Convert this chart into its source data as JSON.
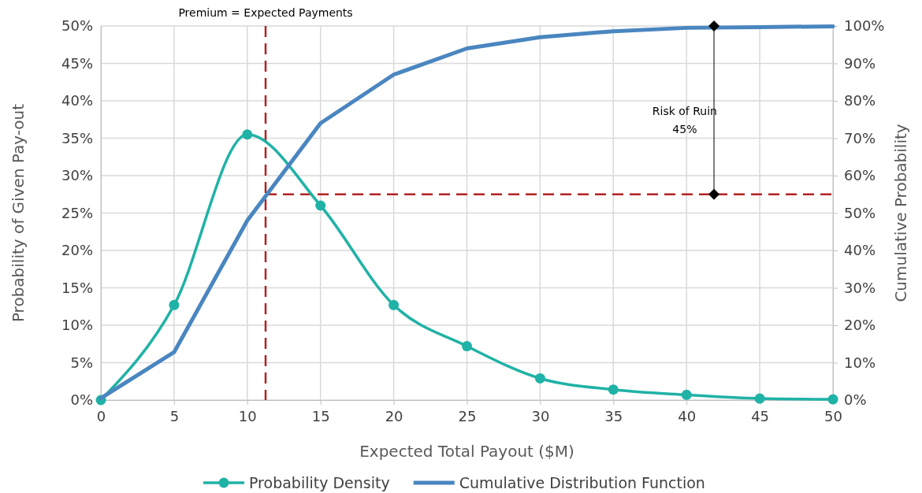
{
  "chart_data": {
    "type": "line",
    "xlabel": "Expected Total Payout ($M)",
    "ylabel": "Probability of Given Pay-out",
    "y2label": "Cumulative Probability",
    "x": [
      0,
      5,
      10,
      15,
      20,
      25,
      30,
      35,
      40,
      45,
      50
    ],
    "xlim": [
      0,
      50
    ],
    "xticks": [
      0,
      5,
      10,
      15,
      20,
      25,
      30,
      35,
      40,
      45,
      50
    ],
    "ylim": [
      0,
      50
    ],
    "yticks": [
      {
        "value": 0,
        "label": "0%"
      },
      {
        "value": 5,
        "label": "5%"
      },
      {
        "value": 10,
        "label": "10%"
      },
      {
        "value": 15,
        "label": "15%"
      },
      {
        "value": 20,
        "label": "20%"
      },
      {
        "value": 25,
        "label": "25%"
      },
      {
        "value": 30,
        "label": "30%"
      },
      {
        "value": 35,
        "label": "35%"
      },
      {
        "value": 40,
        "label": "40%"
      },
      {
        "value": 45,
        "label": "45%"
      },
      {
        "value": 50,
        "label": "50%"
      }
    ],
    "y2lim": [
      0,
      100
    ],
    "y2ticks": [
      {
        "value": 0,
        "label": "0%"
      },
      {
        "value": 10,
        "label": "10%"
      },
      {
        "value": 20,
        "label": "20%"
      },
      {
        "value": 30,
        "label": "30%"
      },
      {
        "value": 40,
        "label": "40%"
      },
      {
        "value": 50,
        "label": "50%"
      },
      {
        "value": 60,
        "label": "60%"
      },
      {
        "value": 70,
        "label": "70%"
      },
      {
        "value": 80,
        "label": "80%"
      },
      {
        "value": 90,
        "label": "90%"
      },
      {
        "value": 100,
        "label": "100%"
      }
    ],
    "series": [
      {
        "name": "Probability Density",
        "color": "#20b2a6",
        "marker": "circle",
        "values": [
          0,
          12.7,
          35.5,
          26,
          12.7,
          7.2,
          2.9,
          1.4,
          0.7,
          0.2,
          0.1
        ]
      },
      {
        "name": "Cumulative Distribution Function",
        "color": "#4a86c0",
        "axis": "y2",
        "marker": "none",
        "values": [
          0.5,
          12.8,
          48,
          74,
          87,
          94,
          97,
          98.6,
          99.5,
          99.7,
          99.9
        ]
      }
    ],
    "ref_lines": [
      {
        "axis": "x",
        "value": 11.25,
        "label": "Premium = Expected Payments",
        "color": "#b22222",
        "line_style": "dashed"
      },
      {
        "axis": "y2",
        "value": 55,
        "color": "#b22222",
        "line_style": "dashed"
      }
    ],
    "annotations": [
      "Risk of Ruin\n45%"
    ],
    "grid": true,
    "legend": "bottom"
  }
}
